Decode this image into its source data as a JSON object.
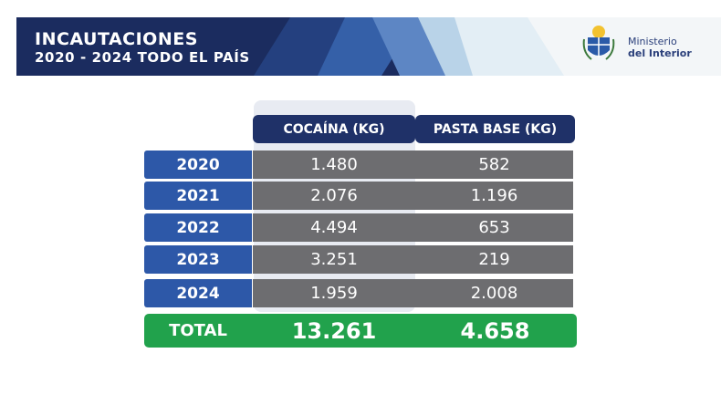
{
  "header": {
    "title": "INCAUTACIONES",
    "subtitle": "2020 - 2024 TODO EL PAÍS",
    "logo_line1": "Ministerio",
    "logo_line2": "del Interior"
  },
  "table": {
    "columns": [
      "COCAÍNA (KG)",
      "PASTA BASE (KG)"
    ],
    "rows": [
      {
        "year": "2020",
        "cocaina": "1.480",
        "pasta_base": "582"
      },
      {
        "year": "2021",
        "cocaina": "2.076",
        "pasta_base": "1.196"
      },
      {
        "year": "2022",
        "cocaina": "4.494",
        "pasta_base": "653"
      },
      {
        "year": "2023",
        "cocaina": "3.251",
        "pasta_base": "219"
      },
      {
        "year": "2024",
        "cocaina": "1.959",
        "pasta_base": "2.008"
      }
    ],
    "total": {
      "label": "TOTAL",
      "cocaina": "13.261",
      "pasta_base": "4.658"
    }
  },
  "colors": {
    "header_navy": "#1f3168",
    "year_blue": "#2d58a8",
    "cell_gray": "#6d6d70",
    "total_green": "#21a24c"
  }
}
